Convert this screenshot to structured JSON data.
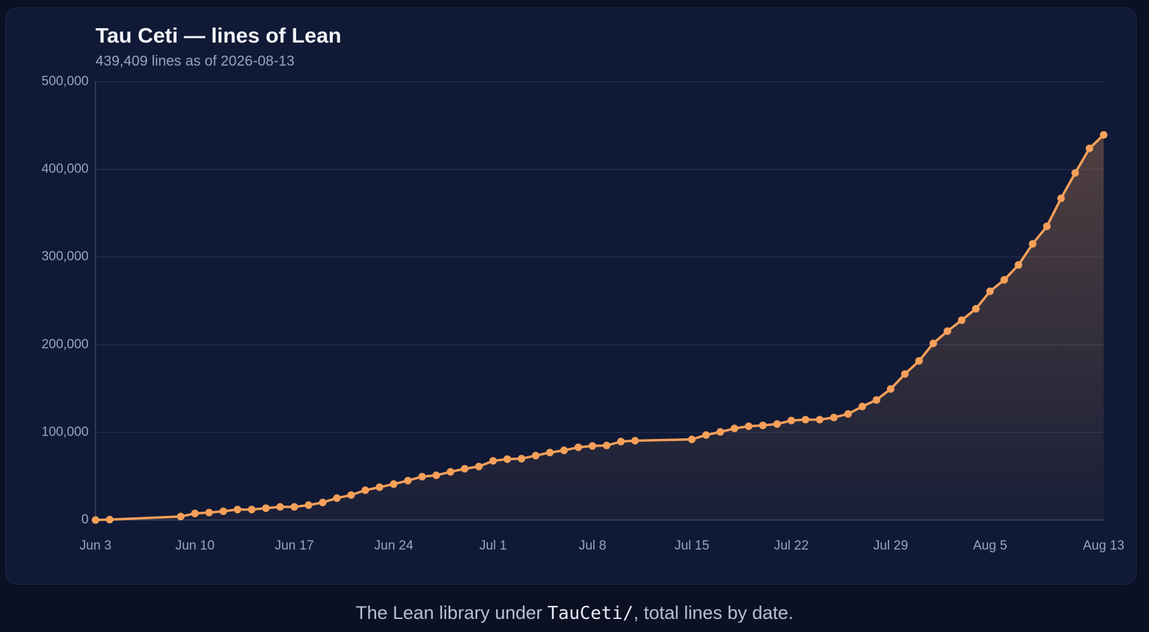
{
  "chart_data": {
    "type": "line",
    "title": "Tau Ceti — lines of Lean",
    "subtitle": "439,409 lines as of 2026-08-13",
    "x": [
      "Jun 3",
      "Jun 4",
      "Jun 9",
      "Jun 10",
      "Jun 11",
      "Jun 12",
      "Jun 13",
      "Jun 14",
      "Jun 15",
      "Jun 16",
      "Jun 17",
      "Jun 18",
      "Jun 19",
      "Jun 20",
      "Jun 21",
      "Jun 22",
      "Jun 23",
      "Jun 24",
      "Jun 25",
      "Jun 26",
      "Jun 27",
      "Jun 28",
      "Jun 29",
      "Jun 30",
      "Jul 1",
      "Jul 2",
      "Jul 3",
      "Jul 4",
      "Jul 5",
      "Jul 6",
      "Jul 7",
      "Jul 8",
      "Jul 9",
      "Jul 10",
      "Jul 11",
      "Jul 15",
      "Jul 16",
      "Jul 17",
      "Jul 18",
      "Jul 19",
      "Jul 20",
      "Jul 21",
      "Jul 22",
      "Jul 23",
      "Jul 24",
      "Jul 25",
      "Jul 26",
      "Jul 27",
      "Jul 28",
      "Jul 29",
      "Jul 30",
      "Jul 31",
      "Aug 1",
      "Aug 2",
      "Aug 3",
      "Aug 4",
      "Aug 5",
      "Aug 6",
      "Aug 7",
      "Aug 8",
      "Aug 9",
      "Aug 10",
      "Aug 11",
      "Aug 12",
      "Aug 13"
    ],
    "series": [
      {
        "name": "lines",
        "color": "#f6a05a",
        "values": [
          0,
          500,
          4000,
          7500,
          8500,
          10000,
          12000,
          12000,
          13500,
          15000,
          15000,
          17000,
          20000,
          25000,
          28500,
          34000,
          37500,
          41000,
          45000,
          49500,
          51000,
          55000,
          58500,
          61000,
          67500,
          69500,
          70000,
          73500,
          77000,
          79500,
          83000,
          84500,
          85000,
          89500,
          90500,
          92000,
          97000,
          100500,
          104500,
          107000,
          108000,
          109500,
          113500,
          114500,
          114500,
          117000,
          121000,
          129500,
          137000,
          149500,
          166500,
          181500,
          201500,
          215500,
          228000,
          241000,
          261000,
          274000,
          291000,
          315000,
          335000,
          367000,
          396000,
          424000,
          439409
        ]
      }
    ],
    "xlim": [
      "Jun 3",
      "Aug 13"
    ],
    "xticks": [
      "Jun 3",
      "Jun 10",
      "Jun 17",
      "Jun 24",
      "Jul 1",
      "Jul 8",
      "Jul 15",
      "Jul 22",
      "Jul 29",
      "Aug 5",
      "Aug 13"
    ],
    "ylim": [
      0,
      500000
    ],
    "yticks": [
      0,
      {
        "value": 100000,
        "label": "100,000"
      },
      {
        "value": 200000,
        "label": "200,000"
      },
      {
        "value": 300000,
        "label": "300,000"
      },
      {
        "value": 400000,
        "label": "400,000"
      },
      {
        "value": 500000,
        "label": "500,000"
      }
    ],
    "grid": true
  },
  "caption": {
    "before": "The Lean library under ",
    "code": "TauCeti/",
    "after": ", total lines by date."
  }
}
